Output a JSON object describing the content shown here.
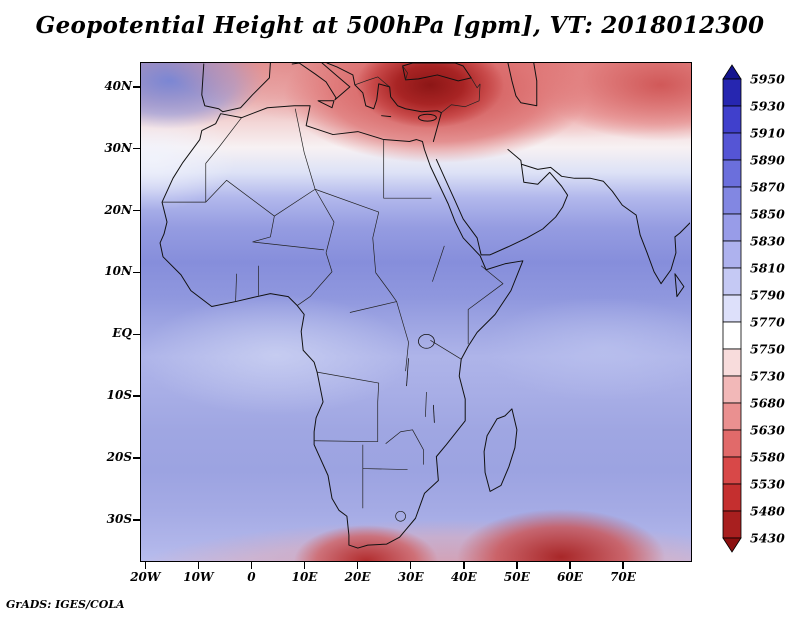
{
  "title": "Geopotential Height at 500hPa [gpm], VT: 2018012300",
  "credit": "GrADS: IGES/COLA",
  "axes": {
    "lat_ticks": [
      {
        "label": "40N",
        "lat": 40
      },
      {
        "label": "30N",
        "lat": 30
      },
      {
        "label": "20N",
        "lat": 20
      },
      {
        "label": "10N",
        "lat": 10
      },
      {
        "label": "EQ",
        "lat": 0
      },
      {
        "label": "10S",
        "lat": -10
      },
      {
        "label": "20S",
        "lat": -20
      },
      {
        "label": "30S",
        "lat": -30
      }
    ],
    "lon_ticks": [
      {
        "label": "20W",
        "lon": -20
      },
      {
        "label": "10W",
        "lon": -10
      },
      {
        "label": "0",
        "lon": 0
      },
      {
        "label": "10E",
        "lon": 10
      },
      {
        "label": "20E",
        "lon": 20
      },
      {
        "label": "30E",
        "lon": 30
      },
      {
        "label": "40E",
        "lon": 40
      },
      {
        "label": "50E",
        "lon": 50
      },
      {
        "label": "60E",
        "lon": 60
      },
      {
        "label": "70E",
        "lon": 70
      }
    ]
  },
  "colorbar": {
    "levels": [
      "5950",
      "5930",
      "5910",
      "5890",
      "5870",
      "5850",
      "5830",
      "5810",
      "5790",
      "5770",
      "5750",
      "5730",
      "5680",
      "5630",
      "5580",
      "5530",
      "5480",
      "5430"
    ],
    "colors": [
      "#14148f",
      "#2626b0",
      "#4040cc",
      "#5555d5",
      "#6b6fdc",
      "#8287e2",
      "#989ce8",
      "#aeb2ee",
      "#c5c9f4",
      "#dde0fa",
      "#ffffff",
      "#f8dcdc",
      "#f2b8b8",
      "#ea9090",
      "#e16a6a",
      "#d84848",
      "#c52f2f",
      "#a81f1f",
      "#8b0f0f"
    ]
  },
  "chart_data": {
    "type": "heatmap",
    "title": "Geopotential Height at 500hPa [gpm], VT: 2018012300",
    "variable": "geopotential height",
    "level_hPa": 500,
    "units": "gpm",
    "valid_time": "2018012300",
    "lon_range": [
      -21,
      83
    ],
    "lat_range": [
      -37,
      44
    ],
    "lon_tick_labels": [
      "20W",
      "10W",
      "0",
      "10E",
      "20E",
      "30E",
      "40E",
      "50E",
      "60E",
      "70E"
    ],
    "lat_tick_labels": [
      "40N",
      "30N",
      "20N",
      "10N",
      "EQ",
      "10S",
      "20S",
      "30S"
    ],
    "contour_levels": [
      5430,
      5480,
      5530,
      5580,
      5630,
      5680,
      5730,
      5750,
      5770,
      5790,
      5810,
      5830,
      5850,
      5870,
      5890,
      5910,
      5930,
      5950
    ],
    "legend_position": "right",
    "grid": false,
    "estimated_grid": {
      "lats": [
        40,
        30,
        20,
        10,
        0,
        -10,
        -20,
        -30
      ],
      "lons": [
        -15,
        0,
        15,
        30,
        45,
        60,
        75
      ],
      "values_gpm": [
        [
          5820,
          5700,
          5590,
          5450,
          5560,
          5650,
          5580
        ],
        [
          5800,
          5780,
          5730,
          5660,
          5700,
          5760,
          5720
        ],
        [
          5845,
          5835,
          5830,
          5815,
          5830,
          5845,
          5850
        ],
        [
          5880,
          5885,
          5870,
          5860,
          5865,
          5880,
          5885
        ],
        [
          5855,
          5850,
          5845,
          5845,
          5850,
          5855,
          5860
        ],
        [
          5830,
          5835,
          5830,
          5830,
          5835,
          5840,
          5845
        ],
        [
          5845,
          5840,
          5835,
          5830,
          5835,
          5830,
          5845
        ],
        [
          5830,
          5825,
          5800,
          5815,
          5805,
          5720,
          5810
        ]
      ]
    },
    "features": [
      "Closed low, minimum below 5430 gpm, centered near 33E 41N over Turkey / eastern Mediterranean",
      "Low heights (5430-5700) along the entire northern edge of the domain (Mediterranean, Middle East)",
      "Subtropical ridge of 5870-5890 gpm spanning roughly 5N-20N across the Sahel and Arabian Sea",
      "Broad 5810-5850 gpm field over equatorial and southern Africa",
      "Cut-off lows around 5550-5650 gpm at the southern edge near 20E 36S and 58E 34S"
    ]
  }
}
